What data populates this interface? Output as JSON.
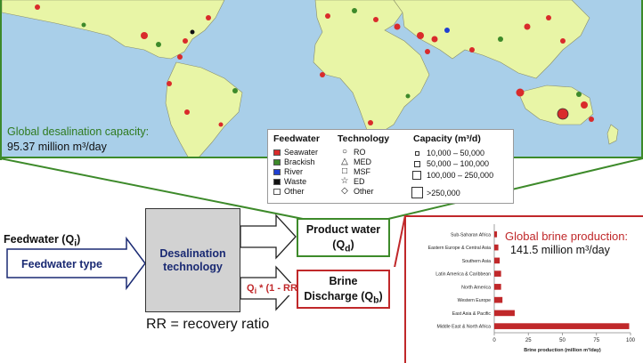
{
  "map": {
    "capacity_title": "Global desalination capacity:",
    "capacity_value": "95.37 million m³/day"
  },
  "legend": {
    "feedwater_title": "Feedwater",
    "feedwater": [
      {
        "label": "Seawater",
        "color": "#d92b2b"
      },
      {
        "label": "Brackish",
        "color": "#3d8a2a"
      },
      {
        "label": "River",
        "color": "#1f3fd1"
      },
      {
        "label": "Waste",
        "color": "#111111"
      },
      {
        "label": "Other",
        "color": "#ffffff"
      }
    ],
    "technology_title": "Technology",
    "technology": [
      {
        "label": "RO",
        "icon": "circle-icon"
      },
      {
        "label": "MED",
        "icon": "triangle-icon"
      },
      {
        "label": "MSF",
        "icon": "square-icon"
      },
      {
        "label": "ED",
        "icon": "star-icon"
      },
      {
        "label": "Other",
        "icon": "diamond-icon"
      }
    ],
    "capacity_title": "Capacity (m³/d)",
    "capacity": [
      "10,000 – 50,000",
      "50,000 – 100,000",
      "100,000 – 250,000",
      ">250,000"
    ]
  },
  "diagram": {
    "feedwater_label": "Feedwater (Q",
    "feedwater_sub": "i",
    "feedwater_type": "Feedwater type",
    "desal_tech": "Desalination technology",
    "product_water": "Product water",
    "product_flow": "(Q",
    "product_sub": "d",
    "brine_discharge": "Brine",
    "brine_discharge2": "Discharge (Q",
    "brine_sub": "b",
    "brine_flow": "Q",
    "brine_flow_sub": "i",
    "brine_flow_rest": " * (1 - RR)",
    "rr": "RR = recovery ratio"
  },
  "brine": {
    "title": "Global brine production:",
    "value": "141.5 million m³/day"
  },
  "chart_data": {
    "type": "bar",
    "orientation": "horizontal",
    "categories": [
      "Sub-Saharan Africa",
      "Eastern Europe & Central Asia",
      "Southern Asia",
      "Latin America & Caribbean",
      "North America",
      "Western Europe",
      "East Asia & Pacific",
      "Middle East & North Africa"
    ],
    "values": [
      2,
      3,
      4,
      5,
      5,
      6,
      15,
      99
    ],
    "xlabel": "Brine production (million m³/day)",
    "xticks": [
      0,
      25,
      50,
      75,
      100
    ],
    "xlim": [
      0,
      100
    ],
    "bar_color": "#c0282a"
  }
}
